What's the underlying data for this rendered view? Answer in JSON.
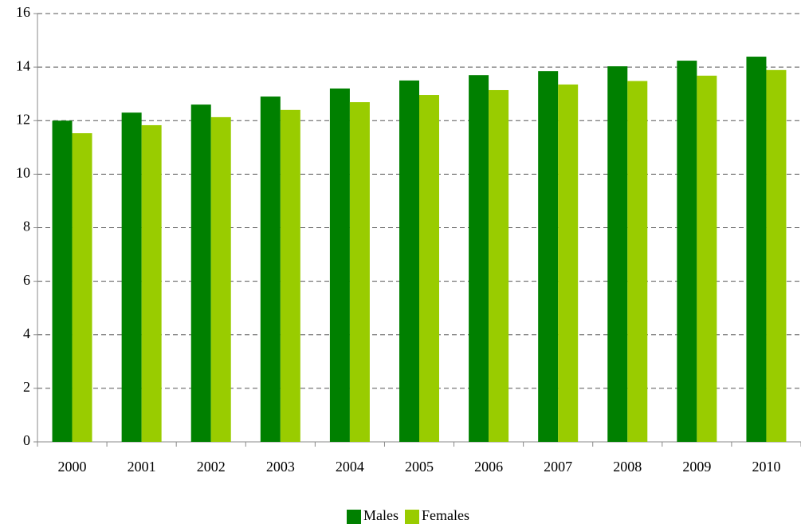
{
  "chart_data": {
    "type": "bar",
    "categories": [
      "2000",
      "2001",
      "2002",
      "2003",
      "2004",
      "2005",
      "2006",
      "2007",
      "2008",
      "2009",
      "2010"
    ],
    "series": [
      {
        "name": "Males",
        "color": "#008000",
        "values": [
          12.0,
          12.3,
          12.6,
          12.9,
          13.2,
          13.5,
          13.7,
          13.85,
          14.03,
          14.24,
          14.39
        ]
      },
      {
        "name": "Females",
        "color": "#99cc00",
        "values": [
          11.53,
          11.83,
          12.13,
          12.4,
          12.69,
          12.96,
          13.14,
          13.35,
          13.48,
          13.68,
          13.89
        ]
      }
    ],
    "ylim": [
      0,
      16
    ],
    "yticks": [
      0,
      2,
      4,
      6,
      8,
      10,
      12,
      14,
      16
    ],
    "grid": true,
    "legend": "bottom"
  }
}
